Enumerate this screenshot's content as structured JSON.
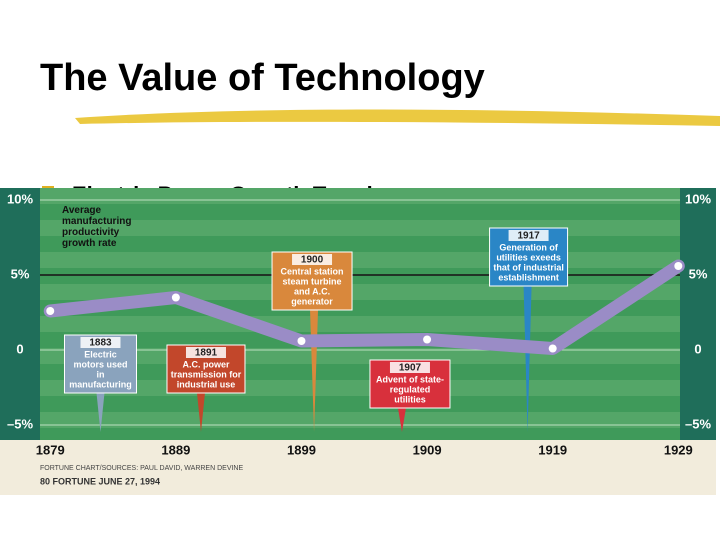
{
  "slide_title": "The Value of Technology",
  "bullet": "Electric Power Growth Trends",
  "chart_data": {
    "type": "line",
    "y_label": "Average manufacturing productivity growth rate",
    "x": [
      1879,
      1889,
      1899,
      1909,
      1919,
      1929
    ],
    "series": [
      {
        "color": "#9a8cc6",
        "values": [
          2.6,
          3.5,
          0.6,
          0.7,
          0.1,
          5.6
        ]
      }
    ],
    "xlim": [
      1875,
      1932
    ],
    "xticks": [
      1879,
      1889,
      1899,
      1909,
      1919,
      1929
    ],
    "ylim": [
      -6,
      10.8
    ],
    "yticks": [
      {
        "value": 10,
        "label": "10%"
      },
      {
        "value": 5,
        "label": "5%"
      },
      0,
      {
        "value": -5,
        "label": "–5%"
      }
    ],
    "grid": true,
    "annotations": [
      {
        "x": 1883,
        "lines": [
          "Electric",
          "motors used",
          "in",
          "manufacturing"
        ],
        "color": "#8aa3bd"
      },
      {
        "x": 1891,
        "lines": [
          "A.C. power",
          "transmission for",
          "industrial use"
        ],
        "color": "#c2472b"
      },
      {
        "x": 1900,
        "lines": [
          "Central station",
          "steam turbine",
          "and A.C.",
          "generator"
        ],
        "color": "#d9883c"
      },
      {
        "x": 1907,
        "lines": [
          "Advent of state-",
          "regulated",
          "utilities"
        ],
        "color": "#d8303c"
      },
      {
        "x": 1917,
        "lines": [
          "Generation of",
          "utilities exeeds",
          "that of industrial",
          "establishment"
        ],
        "color": "#2a86c6"
      }
    ],
    "source": "FORTUNE CHART/SOURCES: PAUL DAVID, WARREN DEVINE",
    "footer": "80 FORTUNE   JUNE 27, 1994"
  }
}
